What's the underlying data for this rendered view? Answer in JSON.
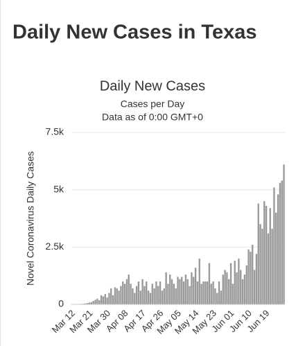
{
  "header": {
    "title": "Daily New Cases in Texas"
  },
  "chart_data": {
    "type": "bar",
    "title": "Daily New Cases",
    "subtitle": [
      "Cases per Day",
      "Data as of 0:00 GMT+0"
    ],
    "y_label": "Novel Coronavirus Daily Cases",
    "color": "#999999",
    "grid": true,
    "ylim": [
      0,
      7500
    ],
    "yticks": [
      0,
      {
        "value": 2500,
        "label": "2.5k"
      },
      {
        "value": 5000,
        "label": "5k"
      },
      {
        "value": 7500,
        "label": "7.5k"
      }
    ],
    "categories": [
      "Mar 12",
      null,
      null,
      null,
      null,
      null,
      null,
      null,
      null,
      "Mar 21",
      null,
      null,
      null,
      null,
      null,
      null,
      null,
      null,
      "Mar 30",
      null,
      null,
      null,
      null,
      null,
      null,
      null,
      null,
      "Apr 08",
      null,
      null,
      null,
      null,
      null,
      null,
      null,
      null,
      "Apr 17",
      null,
      null,
      null,
      null,
      null,
      null,
      null,
      null,
      "Apr 26",
      null,
      null,
      null,
      null,
      null,
      null,
      null,
      null,
      "May 05",
      null,
      null,
      null,
      null,
      null,
      null,
      null,
      null,
      "May 14",
      null,
      null,
      null,
      null,
      null,
      null,
      null,
      null,
      "May 23",
      null,
      null,
      null,
      null,
      null,
      null,
      null,
      null,
      "Jun 01",
      null,
      null,
      null,
      null,
      null,
      null,
      null,
      null,
      "Jun 10",
      null,
      null,
      null,
      null,
      null,
      null,
      null,
      null,
      "Jun 19",
      null,
      null,
      null,
      null,
      null,
      null,
      null,
      null
    ],
    "values": [
      5,
      10,
      15,
      20,
      25,
      30,
      40,
      60,
      80,
      100,
      150,
      200,
      250,
      180,
      400,
      350,
      450,
      300,
      500,
      700,
      400,
      750,
      700,
      600,
      800,
      1000,
      900,
      1100,
      1300,
      900,
      700,
      500,
      800,
      1000,
      600,
      1100,
      800,
      1000,
      600,
      500,
      900,
      700,
      1000,
      800,
      1000,
      600,
      700,
      1400,
      900,
      1300,
      1100,
      900,
      700,
      1200,
      1100,
      1200,
      1000,
      1300,
      1100,
      800,
      1400,
      1200,
      1600,
      1000,
      2000,
      900,
      1000,
      1000,
      1000,
      1800,
      900,
      1000,
      700,
      500,
      1000,
      600,
      1300,
      1500,
      1400,
      1100,
      1800,
      900,
      1900,
      1400,
      2000,
      1500,
      1100,
      1300,
      1700,
      2400,
      2300,
      2600,
      1500,
      2200,
      4400,
      3500,
      3300,
      4500,
      4300,
      3100,
      4200,
      3300,
      5100,
      4000,
      4800,
      5300,
      5400,
      6100
    ]
  }
}
